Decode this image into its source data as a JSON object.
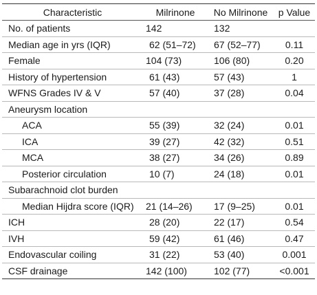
{
  "headers": {
    "characteristic": "Characteristic",
    "milrinone": "Milrinone",
    "no_milrinone": "No Milrinone",
    "p_value": "p Value"
  },
  "rows": [
    {
      "label": "No. of patients",
      "milrinone": "142",
      "no_milrinone": "132",
      "p": ""
    },
    {
      "label": "Median age in yrs (IQR)",
      "milrinone": "62 (51–72)",
      "no_milrinone": "67 (52–77)",
      "p": "0.11"
    },
    {
      "label": "Female",
      "milrinone": "104 (73)",
      "no_milrinone": "106 (80)",
      "p": "0.20"
    },
    {
      "label": "History of hypertension",
      "milrinone": "61 (43)",
      "no_milrinone": "57 (43)",
      "p": "1"
    },
    {
      "label": "WFNS Grades IV & V",
      "milrinone": "57 (40)",
      "no_milrinone": "37 (28)",
      "p": "0.04"
    },
    {
      "label": "Aneurysm location",
      "milrinone": "",
      "no_milrinone": "",
      "p": ""
    },
    {
      "label": "ACA",
      "milrinone": "55 (39)",
      "no_milrinone": "32 (24)",
      "p": "0.01"
    },
    {
      "label": "ICA",
      "milrinone": "39 (27)",
      "no_milrinone": "42 (32)",
      "p": "0.51"
    },
    {
      "label": "MCA",
      "milrinone": "38 (27)",
      "no_milrinone": "34 (26)",
      "p": "0.89"
    },
    {
      "label": "Posterior circulation",
      "milrinone": "10 (7)",
      "no_milrinone": "24 (18)",
      "p": "0.01"
    },
    {
      "label": "Subarachnoid clot burden",
      "milrinone": "",
      "no_milrinone": "",
      "p": ""
    },
    {
      "label": "Median Hijdra score (IQR)",
      "milrinone": "21 (14–26)",
      "no_milrinone": "17 (9–25)",
      "p": "0.01"
    },
    {
      "label": "ICH",
      "milrinone": "28 (20)",
      "no_milrinone": "22 (17)",
      "p": "0.54"
    },
    {
      "label": "IVH",
      "milrinone": "59 (42)",
      "no_milrinone": "61 (46)",
      "p": "0.47"
    },
    {
      "label": "Endovascular coiling",
      "milrinone": "31 (22)",
      "no_milrinone": "53 (40)",
      "p": "0.001"
    },
    {
      "label": "CSF drainage",
      "milrinone": "142 (100)",
      "no_milrinone": "102 (77)",
      "p": "<0.001"
    }
  ]
}
